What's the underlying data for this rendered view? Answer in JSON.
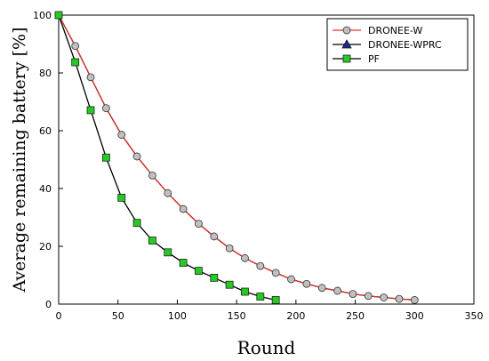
{
  "chart_data": {
    "type": "line",
    "xlabel": "Round",
    "ylabel": "Average remaining battery [%]",
    "xlim": [
      0,
      350
    ],
    "ylim": [
      0,
      100
    ],
    "xticks": [
      0,
      50,
      100,
      150,
      200,
      250,
      300,
      350
    ],
    "yticks": [
      0,
      20,
      40,
      60,
      80,
      100
    ],
    "grid": false,
    "legend_position": "top-right",
    "series": [
      {
        "name": "DRONEE-W",
        "line_color": "#e03030",
        "marker": "circle",
        "marker_fill": "#c0c0c0",
        "x": [
          0,
          14,
          27,
          40,
          53,
          66,
          79,
          92,
          105,
          118,
          131,
          144,
          157,
          170,
          183,
          196,
          209,
          222,
          235,
          248,
          261,
          274,
          287,
          300
        ],
        "y": [
          100,
          89.3,
          78.5,
          67.8,
          58.6,
          51.1,
          44.5,
          38.4,
          32.9,
          27.8,
          23.4,
          19.3,
          15.9,
          13.2,
          10.8,
          8.6,
          7.0,
          5.6,
          4.6,
          3.5,
          2.8,
          2.3,
          1.8,
          1.4
        ]
      },
      {
        "name": "DRONEE-WPRC",
        "line_color": "#000000",
        "marker": "triangle",
        "marker_fill": "#1a2a9a",
        "x": [
          0,
          14,
          27,
          40,
          53,
          66,
          79,
          92,
          105,
          118,
          131,
          144,
          157,
          170,
          183,
          196,
          209,
          222,
          235,
          248,
          261,
          274,
          287,
          300
        ],
        "y": [
          100,
          89.3,
          78.5,
          67.8,
          58.6,
          51.1,
          44.5,
          38.4,
          32.9,
          27.8,
          23.4,
          19.3,
          15.9,
          13.2,
          10.8,
          8.6,
          7.0,
          5.6,
          4.6,
          3.5,
          2.8,
          2.3,
          1.8,
          1.4
        ],
        "show_markers": false
      },
      {
        "name": "PF",
        "line_color": "#000000",
        "marker": "square",
        "marker_fill": "#22cc22",
        "x": [
          0,
          14,
          27,
          40,
          53,
          66,
          79,
          92,
          105,
          118,
          131,
          144,
          157,
          170,
          183
        ],
        "y": [
          100,
          83.7,
          67.1,
          50.7,
          36.8,
          28.1,
          22.0,
          17.9,
          14.3,
          11.5,
          9.1,
          6.7,
          4.3,
          2.6,
          1.4
        ]
      }
    ]
  }
}
